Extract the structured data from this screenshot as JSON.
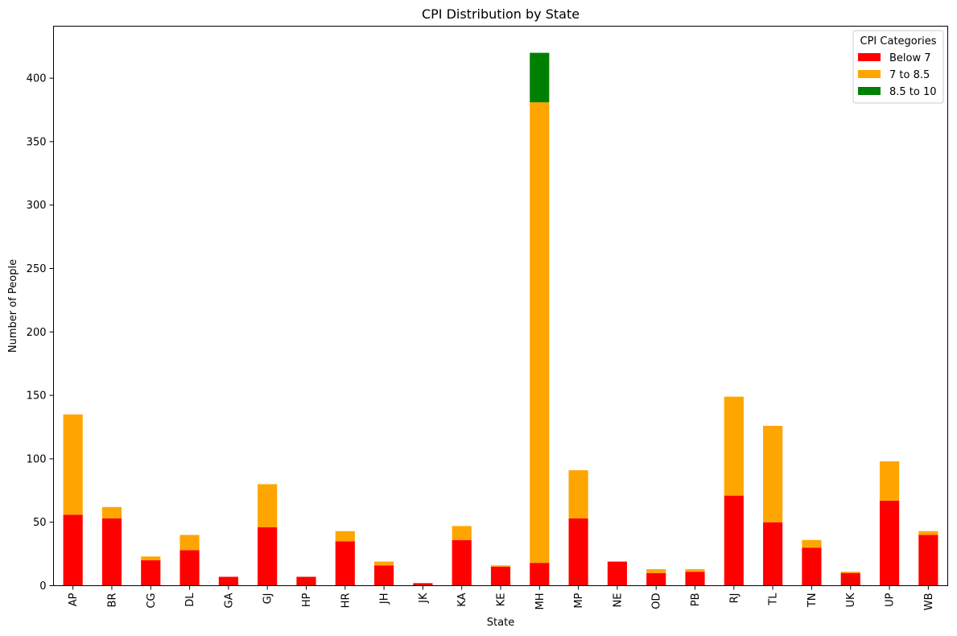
{
  "chart_data": {
    "type": "bar",
    "stacked": true,
    "title": "CPI Distribution by State",
    "xlabel": "State",
    "ylabel": "Number of People",
    "ylim": [
      0,
      441
    ],
    "yticks": [
      0,
      50,
      100,
      150,
      200,
      250,
      300,
      350,
      400
    ],
    "categories": [
      "AP",
      "BR",
      "CG",
      "DL",
      "GA",
      "GJ",
      "HP",
      "HR",
      "JH",
      "JK",
      "KA",
      "KE",
      "MH",
      "MP",
      "NE",
      "OD",
      "PB",
      "RJ",
      "TL",
      "TN",
      "UK",
      "UP",
      "WB"
    ],
    "series": [
      {
        "name": "Below 7",
        "color": "#ff0000",
        "values": [
          56,
          53,
          20,
          28,
          7,
          46,
          7,
          35,
          16,
          2,
          36,
          15,
          18,
          53,
          19,
          10,
          11,
          71,
          50,
          30,
          10,
          67,
          40
        ]
      },
      {
        "name": "7 to 8.5",
        "color": "#ffa500",
        "values": [
          79,
          9,
          3,
          12,
          0,
          34,
          0,
          8,
          3,
          0,
          11,
          1,
          363,
          38,
          0,
          3,
          2,
          78,
          76,
          6,
          1,
          31,
          3
        ]
      },
      {
        "name": "8.5 to 10",
        "color": "#008000",
        "values": [
          0,
          0,
          0,
          0,
          0,
          0,
          0,
          0,
          0,
          0,
          0,
          0,
          39,
          0,
          0,
          0,
          0,
          0,
          0,
          0,
          0,
          0,
          0
        ]
      }
    ],
    "legend": {
      "title": "CPI Categories",
      "placement": "top-right"
    },
    "grid": false
  }
}
